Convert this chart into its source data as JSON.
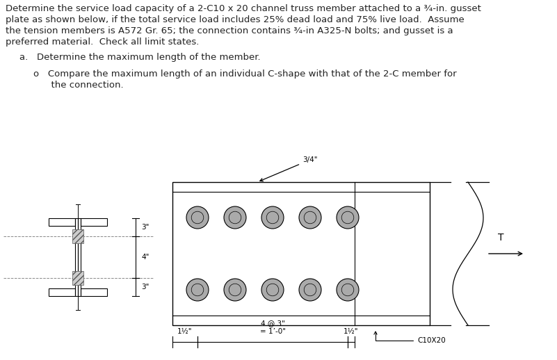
{
  "title_line1": "Determine the service load capacity of a 2-C10 x 20 channel truss member attached to a ¾-in. gusset",
  "title_line2": "plate as shown below, if the total service load includes 25% dead load and 75% live load.  Assume",
  "title_line3": "the tension members is A572 Gr. 65; the connection contains ¾-in A325-N bolts; and gusset is a",
  "title_line4": "preferred material.  Check all limit states.",
  "item_a": "a.   Determine the maximum length of the member.",
  "item_o_line1": "o   Compare the maximum length of an individual C-shape with that of the 2-C member for",
  "item_o_line2": "      the connection.",
  "dim_3top": "3\"",
  "dim_4mid": "4\"",
  "dim_3bot": "3\"",
  "dim_1half_left": "1½\"",
  "dim_bolt_spacing": "4 @ 3\"\n= 1’-0\"",
  "dim_1half_right": "1½\"",
  "label_C10X20": "C10X20",
  "label_34": "3/4\"",
  "label_T": "T",
  "bg_color": "#ffffff",
  "line_color": "#000000",
  "gray_color": "#888888",
  "bolt_fill": "#aaaaaa",
  "font_size_body": 9.5,
  "font_size_label": 7.5,
  "font_size_dim": 7.5
}
